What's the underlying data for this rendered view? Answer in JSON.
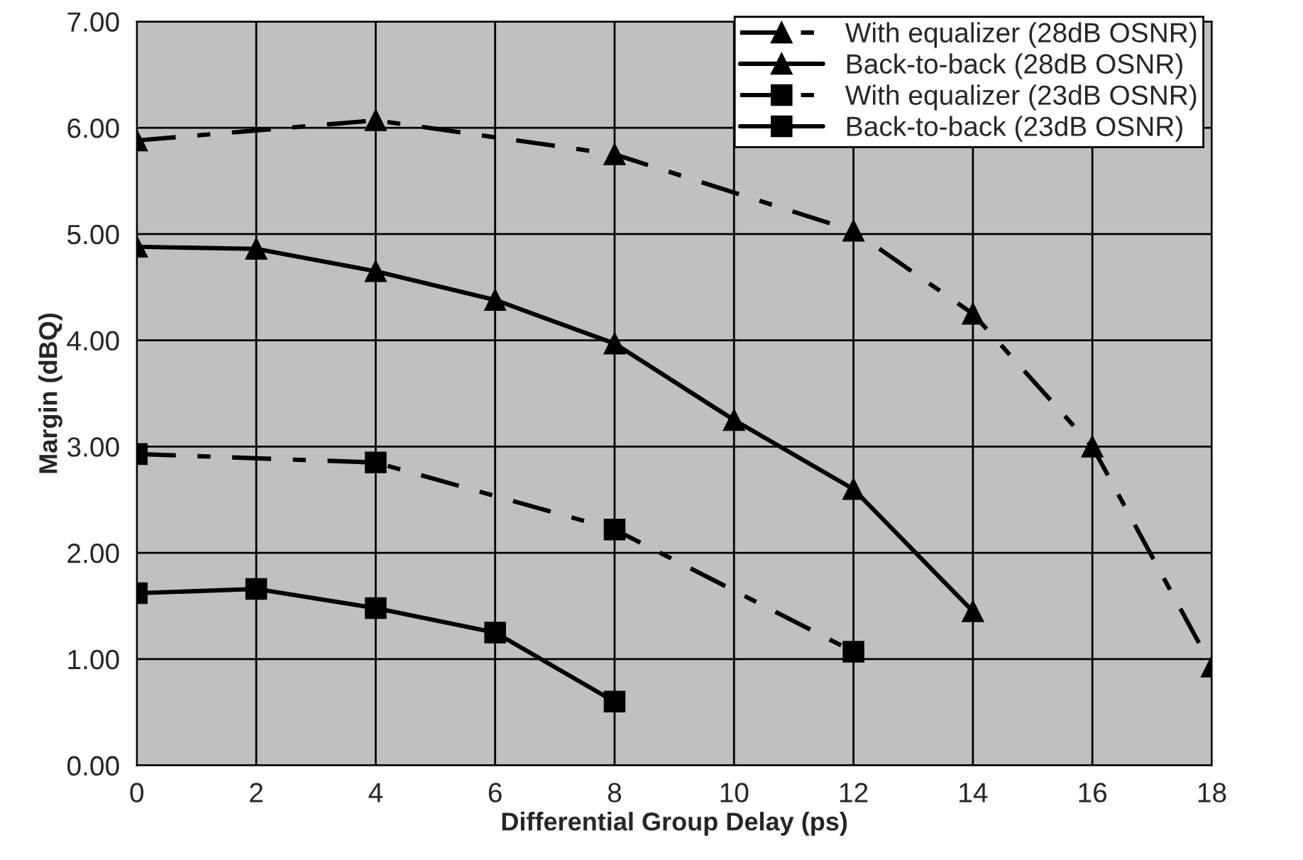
{
  "chart_data": {
    "type": "line",
    "xlabel": "Differential Group Delay (ps)",
    "ylabel": "Margin (dBQ)",
    "xlim": [
      0,
      18
    ],
    "xticks": [
      0,
      2,
      4,
      6,
      8,
      10,
      12,
      14,
      16,
      18
    ],
    "ylim": [
      0,
      7
    ],
    "yticks": [
      {
        "value": 0,
        "label": "0.00"
      },
      {
        "value": 1,
        "label": "1.00"
      },
      {
        "value": 2,
        "label": "2.00"
      },
      {
        "value": 3,
        "label": "3.00"
      },
      {
        "value": 4,
        "label": "4.00"
      },
      {
        "value": 5,
        "label": "5.00"
      },
      {
        "value": 6,
        "label": "6.00"
      },
      {
        "value": 7,
        "label": "7.00"
      }
    ],
    "grid": true,
    "legend": "top right",
    "series": [
      {
        "name": "With equalizer (28dB OSNR)",
        "color": "#000000",
        "marker": "triangle",
        "line_style": "dashed",
        "x": [
          0,
          4,
          8,
          12,
          14,
          16,
          18
        ],
        "values": [
          5.88,
          6.07,
          5.75,
          5.03,
          4.25,
          3.0,
          0.93
        ]
      },
      {
        "name": "Back-to-back (28dB OSNR)",
        "color": "#000000",
        "marker": "triangle",
        "line_style": "solid",
        "x": [
          0,
          2,
          4,
          6,
          8,
          10,
          12,
          14
        ],
        "values": [
          4.88,
          4.86,
          4.65,
          4.38,
          3.97,
          3.25,
          2.6,
          1.45
        ]
      },
      {
        "name": "With equalizer (23dB OSNR)",
        "color": "#000000",
        "marker": "square",
        "line_style": "dashed",
        "x": [
          0,
          4,
          8,
          12
        ],
        "values": [
          2.93,
          2.85,
          2.22,
          1.07
        ]
      },
      {
        "name": "Back-to-back (23dB OSNR)",
        "color": "#000000",
        "marker": "square",
        "line_style": "solid",
        "x": [
          0,
          2,
          4,
          6,
          8
        ],
        "values": [
          1.62,
          1.66,
          1.48,
          1.25,
          0.6
        ]
      }
    ]
  }
}
